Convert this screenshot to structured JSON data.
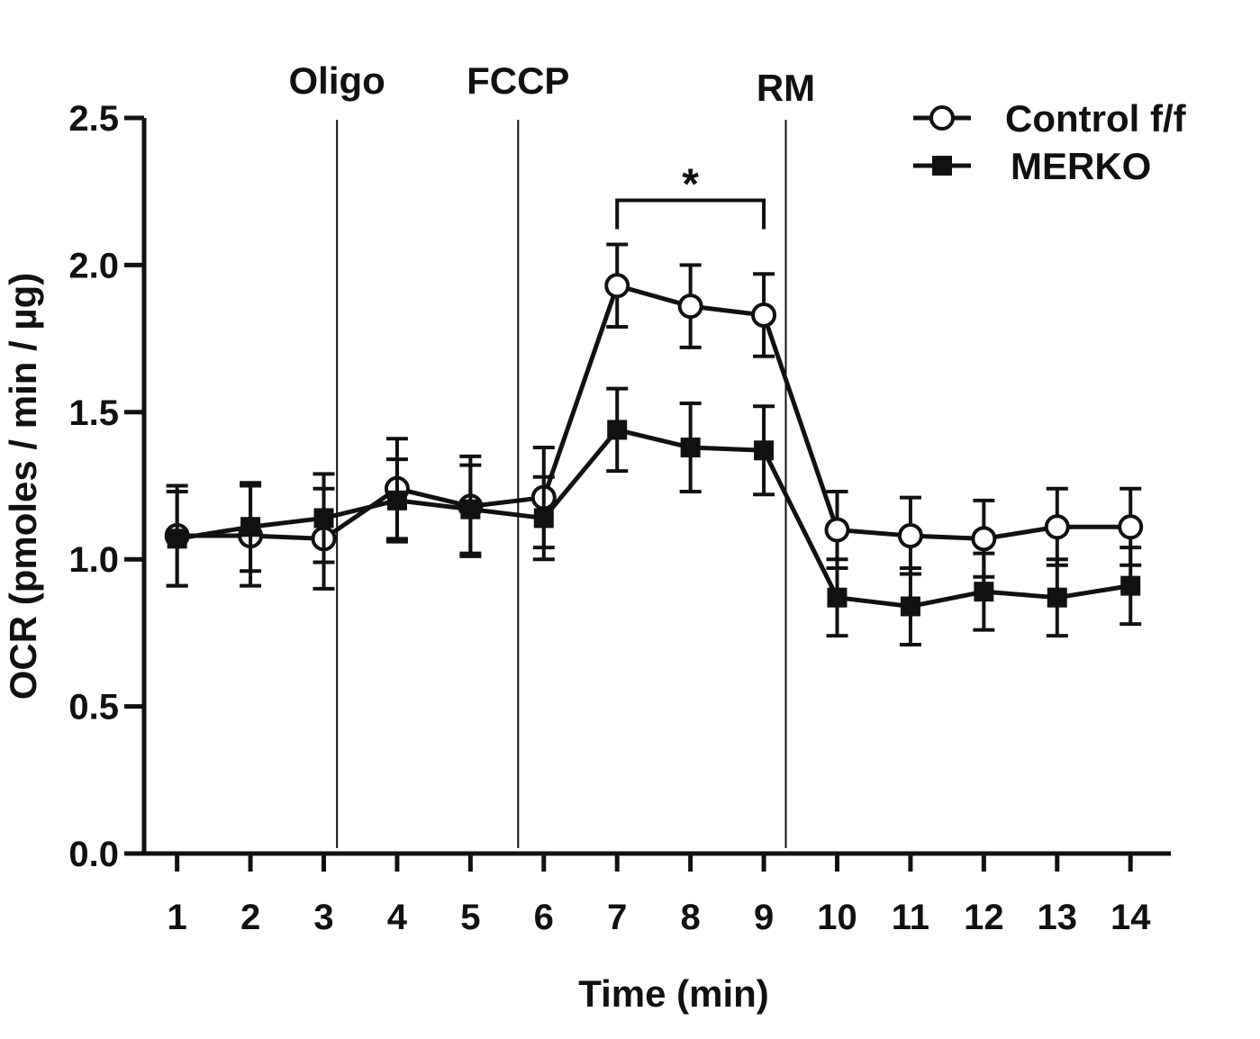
{
  "chart_data": {
    "type": "line",
    "xlabel": "Time (min)",
    "ylabel": "OCR (pmoles / min / µg)",
    "xlim": [
      0.55,
      14.55
    ],
    "ylim": [
      0,
      2.5
    ],
    "x": [
      1,
      2,
      3,
      4,
      5,
      6,
      7,
      8,
      9,
      10,
      11,
      12,
      13,
      14
    ],
    "x_tick_labels": [
      "1",
      "2",
      "3",
      "4",
      "5",
      "6",
      "7",
      "8",
      "9",
      "10",
      "11",
      "12",
      "13",
      "14"
    ],
    "y_ticks": [
      0.0,
      0.5,
      1.0,
      1.5,
      2.0,
      2.5
    ],
    "y_tick_labels": [
      "0.0",
      "0.5",
      "1.0",
      "1.5",
      "2.0",
      "2.5"
    ],
    "grid": false,
    "legend_position": "top-right",
    "series": [
      {
        "name": "Control f/f",
        "marker": "open-circle",
        "values": [
          1.08,
          1.08,
          1.07,
          1.24,
          1.18,
          1.21,
          1.93,
          1.86,
          1.83,
          1.1,
          1.08,
          1.07,
          1.11,
          1.11
        ],
        "errors": [
          0.17,
          0.17,
          0.17,
          0.17,
          0.17,
          0.17,
          0.14,
          0.14,
          0.14,
          0.13,
          0.13,
          0.13,
          0.13,
          0.13
        ]
      },
      {
        "name": "MERKO",
        "marker": "filled-square",
        "values": [
          1.07,
          1.11,
          1.14,
          1.2,
          1.17,
          1.14,
          1.44,
          1.38,
          1.37,
          0.87,
          0.84,
          0.89,
          0.87,
          0.91
        ],
        "errors": [
          0.16,
          0.15,
          0.15,
          0.14,
          0.15,
          0.14,
          0.14,
          0.15,
          0.15,
          0.13,
          0.13,
          0.13,
          0.13,
          0.13
        ]
      }
    ],
    "vlines": [
      {
        "label": "Oligo",
        "x": 3.18
      },
      {
        "label": "FCCP",
        "x": 5.65
      },
      {
        "label": "RM",
        "x": 9.3
      }
    ],
    "significance": {
      "label": "*",
      "x_start": 7,
      "x_end": 9,
      "y": 2.22
    }
  }
}
